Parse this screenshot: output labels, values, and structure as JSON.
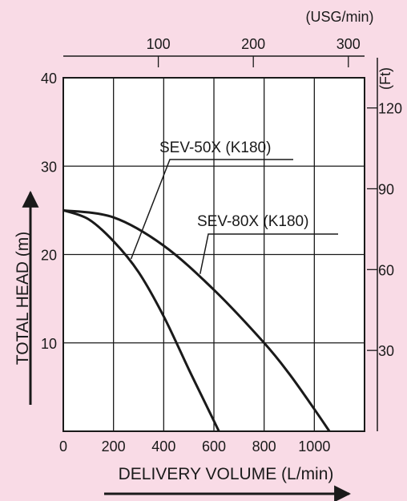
{
  "colors": {
    "background": "#f9dbe6",
    "plot_area": "#ffffff",
    "ink": "#1a1a1a"
  },
  "chart_data": {
    "type": "line",
    "title": "",
    "xlabel": "DELIVERY VOLUME (L/min)",
    "ylabel": "TOTAL HEAD (m)",
    "xlim": [
      0,
      1200
    ],
    "ylim": [
      0,
      40
    ],
    "x_ticks": [
      0,
      200,
      400,
      600,
      800,
      1000
    ],
    "x_tick_labels": [
      "0",
      "200",
      "400",
      "600",
      "800",
      "1000"
    ],
    "y_ticks": [
      10,
      20,
      30,
      40
    ],
    "y_tick_labels": [
      "10",
      "20",
      "30",
      "40"
    ],
    "grid": true,
    "secondary_x_axis": {
      "label": "(USG/min)",
      "position": "top",
      "ticks": [
        100,
        200,
        300
      ],
      "tick_labels": [
        "100",
        "200",
        "300"
      ]
    },
    "secondary_y_axis": {
      "label": "(Ft)",
      "position": "right",
      "ticks": [
        30,
        60,
        90,
        120
      ],
      "tick_labels": [
        "30",
        "60",
        "90",
        "120"
      ]
    },
    "series": [
      {
        "name": "SEV-50X (K180)",
        "x": [
          0,
          100,
          200,
          300,
          400,
          500,
          560,
          620
        ],
        "y": [
          25,
          24,
          21.5,
          18,
          13,
          7,
          3.5,
          0
        ]
      },
      {
        "name": "SEV-80X (K180)",
        "x": [
          0,
          200,
          400,
          600,
          800,
          900,
          1000,
          1060
        ],
        "y": [
          25,
          24.2,
          21,
          16,
          10,
          6.5,
          2.5,
          0
        ]
      }
    ]
  }
}
